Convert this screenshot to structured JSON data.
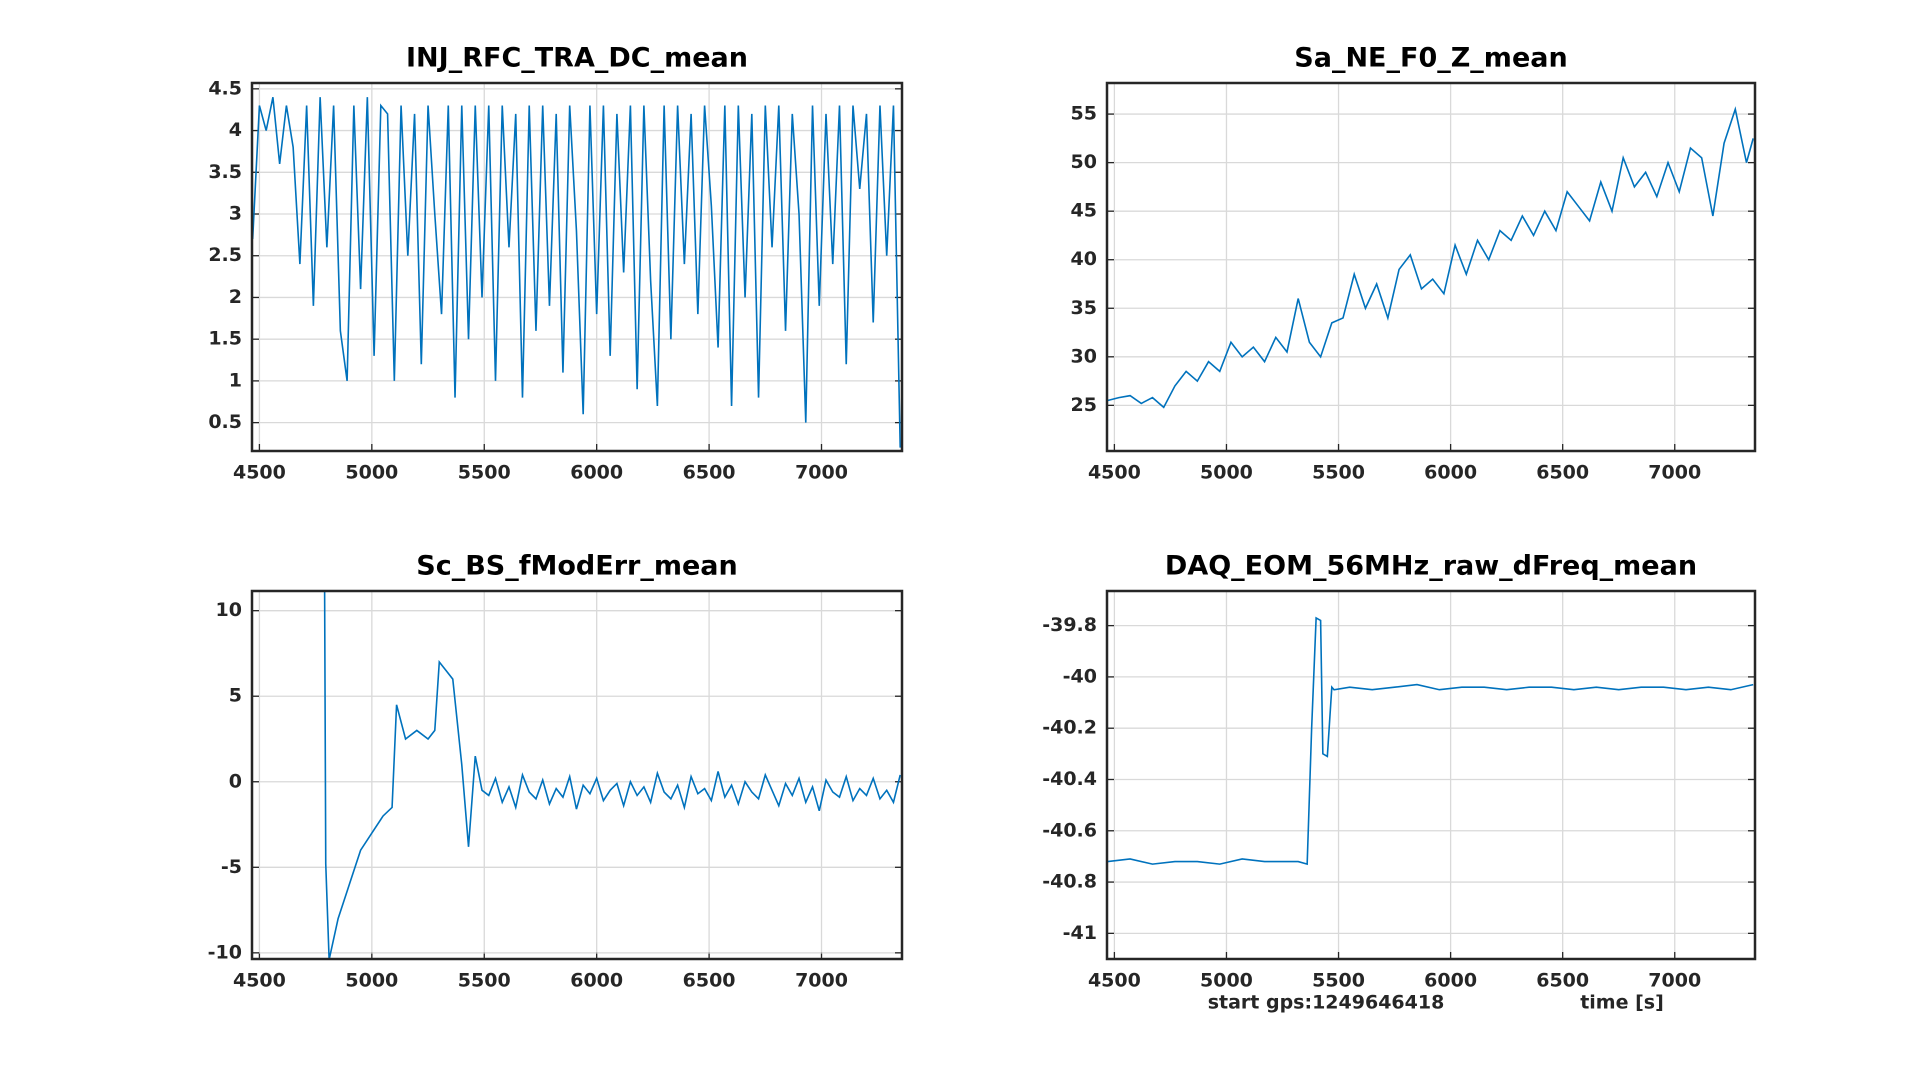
{
  "chart_data": [
    {
      "type": "line",
      "title": "INJ_RFC_TRA_DC_mean",
      "color": "#0072bd",
      "grid": true,
      "xlim": [
        4467,
        7358
      ],
      "xticks": [
        4500,
        5000,
        5500,
        6000,
        6500,
        7000
      ],
      "ylim": [
        0.16,
        4.57
      ],
      "yticks": [
        0.5,
        1,
        1.5,
        2,
        2.5,
        3,
        3.5,
        4,
        4.5
      ],
      "x": [
        4470,
        4500,
        4530,
        4560,
        4590,
        4620,
        4650,
        4680,
        4710,
        4740,
        4770,
        4800,
        4830,
        4860,
        4890,
        4920,
        4950,
        4980,
        5010,
        5040,
        5070,
        5100,
        5130,
        5160,
        5190,
        5220,
        5250,
        5280,
        5310,
        5340,
        5370,
        5400,
        5430,
        5460,
        5490,
        5520,
        5550,
        5580,
        5610,
        5640,
        5670,
        5700,
        5730,
        5760,
        5790,
        5820,
        5850,
        5880,
        5910,
        5940,
        5970,
        6000,
        6030,
        6060,
        6090,
        6120,
        6150,
        6180,
        6210,
        6240,
        6270,
        6300,
        6330,
        6360,
        6390,
        6420,
        6450,
        6480,
        6510,
        6540,
        6570,
        6600,
        6630,
        6660,
        6690,
        6720,
        6750,
        6780,
        6810,
        6840,
        6870,
        6900,
        6930,
        6960,
        6990,
        7020,
        7050,
        7080,
        7110,
        7140,
        7170,
        7200,
        7230,
        7260,
        7290,
        7320,
        7350
      ],
      "values": [
        2.7,
        4.3,
        4.0,
        4.4,
        3.6,
        4.3,
        3.8,
        2.4,
        4.3,
        1.9,
        4.4,
        2.6,
        4.3,
        1.6,
        1.0,
        4.3,
        2.1,
        4.4,
        1.3,
        4.3,
        4.2,
        1.0,
        4.3,
        2.5,
        4.2,
        1.2,
        4.3,
        3.0,
        1.8,
        4.3,
        0.8,
        4.3,
        1.5,
        4.3,
        2.0,
        4.3,
        1.0,
        4.3,
        2.6,
        4.2,
        0.8,
        4.3,
        1.6,
        4.3,
        1.9,
        4.2,
        1.1,
        4.3,
        2.8,
        0.6,
        4.3,
        1.8,
        4.3,
        1.3,
        4.2,
        2.3,
        4.3,
        0.9,
        4.3,
        2.2,
        0.7,
        4.3,
        1.5,
        4.3,
        2.4,
        4.2,
        1.8,
        4.3,
        3.1,
        1.4,
        4.3,
        0.7,
        4.3,
        2.0,
        4.2,
        0.8,
        4.3,
        2.6,
        4.3,
        1.6,
        4.2,
        3.0,
        0.5,
        4.3,
        1.9,
        4.2,
        2.4,
        4.3,
        1.2,
        4.3,
        3.3,
        4.2,
        1.7,
        4.3,
        2.5,
        4.3,
        0.2
      ]
    },
    {
      "type": "line",
      "title": "Sa_NE_F0_Z_mean",
      "color": "#0072bd",
      "grid": true,
      "xlim": [
        4467,
        7358
      ],
      "xticks": [
        4500,
        5000,
        5500,
        6000,
        6500,
        7000
      ],
      "ylim": [
        20.3,
        58.2
      ],
      "yticks": [
        25,
        30,
        35,
        40,
        45,
        50,
        55
      ],
      "x": [
        4470,
        4520,
        4570,
        4620,
        4670,
        4720,
        4770,
        4820,
        4870,
        4920,
        4970,
        5020,
        5070,
        5120,
        5170,
        5220,
        5270,
        5320,
        5370,
        5420,
        5470,
        5520,
        5570,
        5620,
        5670,
        5720,
        5770,
        5820,
        5870,
        5920,
        5970,
        6020,
        6070,
        6120,
        6170,
        6220,
        6270,
        6320,
        6370,
        6420,
        6470,
        6520,
        6570,
        6620,
        6670,
        6720,
        6770,
        6820,
        6870,
        6920,
        6970,
        7020,
        7070,
        7120,
        7170,
        7220,
        7270,
        7320,
        7350
      ],
      "values": [
        25.5,
        25.8,
        26.0,
        25.2,
        25.8,
        24.8,
        27.0,
        28.5,
        27.5,
        29.5,
        28.5,
        31.5,
        30.0,
        31.0,
        29.5,
        32.0,
        30.5,
        36.0,
        31.5,
        30.0,
        33.5,
        34.0,
        38.5,
        35.0,
        37.5,
        34.0,
        39.0,
        40.5,
        37.0,
        38.0,
        36.5,
        41.5,
        38.5,
        42.0,
        40.0,
        43.0,
        42.0,
        44.5,
        42.5,
        45.0,
        43.0,
        47.0,
        45.5,
        44.0,
        48.0,
        45.0,
        50.5,
        47.5,
        49.0,
        46.5,
        50.0,
        47.0,
        51.5,
        50.5,
        44.5,
        52.0,
        55.5,
        50.0,
        52.5
      ]
    },
    {
      "type": "line",
      "title": "Sc_BS_fModErr_mean",
      "color": "#0072bd",
      "grid": true,
      "xlim": [
        4467,
        7358
      ],
      "xticks": [
        4500,
        5000,
        5500,
        6000,
        6500,
        7000
      ],
      "ylim": [
        -10.36,
        11.15
      ],
      "yticks": [
        -10,
        -5,
        0,
        5,
        10
      ],
      "x": [
        4790,
        4795,
        4810,
        4850,
        4900,
        4950,
        5000,
        5050,
        5090,
        5110,
        5150,
        5200,
        5250,
        5280,
        5300,
        5330,
        5360,
        5400,
        5430,
        5460,
        5490,
        5520,
        5550,
        5580,
        5610,
        5640,
        5670,
        5700,
        5730,
        5760,
        5790,
        5820,
        5850,
        5880,
        5910,
        5940,
        5970,
        6000,
        6030,
        6060,
        6090,
        6120,
        6150,
        6180,
        6210,
        6240,
        6270,
        6300,
        6330,
        6360,
        6390,
        6420,
        6450,
        6480,
        6510,
        6540,
        6570,
        6600,
        6630,
        6660,
        6690,
        6720,
        6750,
        6780,
        6810,
        6840,
        6870,
        6900,
        6930,
        6960,
        6990,
        7020,
        7050,
        7080,
        7110,
        7140,
        7170,
        7200,
        7230,
        7260,
        7290,
        7320,
        7350
      ],
      "values": [
        11.2,
        -4.8,
        -10.4,
        -8,
        -6,
        -4,
        -3,
        -2,
        -1.5,
        4.5,
        2.5,
        3,
        2.5,
        3,
        7,
        6.5,
        6,
        1,
        -3.8,
        1.5,
        -0.5,
        -0.8,
        0.2,
        -1.2,
        -0.3,
        -1.5,
        0.4,
        -0.6,
        -1.0,
        0.1,
        -1.3,
        -0.4,
        -0.9,
        0.3,
        -1.6,
        -0.2,
        -0.7,
        0.2,
        -1.1,
        -0.5,
        -0.1,
        -1.4,
        0.0,
        -0.8,
        -0.3,
        -1.2,
        0.5,
        -0.6,
        -1.0,
        -0.2,
        -1.5,
        0.3,
        -0.7,
        -0.4,
        -1.1,
        0.6,
        -0.9,
        -0.2,
        -1.3,
        0.0,
        -0.6,
        -1.0,
        0.4,
        -0.5,
        -1.4,
        -0.1,
        -0.8,
        0.2,
        -1.2,
        -0.3,
        -1.7,
        0.1,
        -0.6,
        -0.9,
        0.3,
        -1.1,
        -0.4,
        -0.8,
        0.2,
        -1.0,
        -0.5,
        -1.2,
        0.4
      ]
    },
    {
      "type": "line",
      "title": "DAQ_EOM_56MHz_raw_dFreq_mean",
      "color": "#0072bd",
      "grid": true,
      "xlabel": "time [s]",
      "note": "start gps:1249646418",
      "xlim": [
        4467,
        7358
      ],
      "xticks": [
        4500,
        5000,
        5500,
        6000,
        6500,
        7000
      ],
      "ylim": [
        -41.1,
        -39.665
      ],
      "yticks": [
        -41,
        -40.8,
        -40.6,
        -40.4,
        -40.2,
        -40,
        -39.8
      ],
      "x": [
        4470,
        4570,
        4670,
        4770,
        4870,
        4970,
        5070,
        5170,
        5270,
        5320,
        5360,
        5380,
        5400,
        5420,
        5430,
        5450,
        5470,
        5480,
        5550,
        5650,
        5750,
        5850,
        5950,
        6050,
        6150,
        6250,
        6350,
        6450,
        6550,
        6650,
        6750,
        6850,
        6950,
        7050,
        7150,
        7250,
        7350
      ],
      "values": [
        -40.72,
        -40.71,
        -40.73,
        -40.72,
        -40.72,
        -40.73,
        -40.71,
        -40.72,
        -40.72,
        -40.72,
        -40.73,
        -40.2,
        -39.77,
        -39.78,
        -40.3,
        -40.31,
        -40.04,
        -40.05,
        -40.04,
        -40.05,
        -40.04,
        -40.03,
        -40.05,
        -40.04,
        -40.04,
        -40.05,
        -40.04,
        -40.04,
        -40.05,
        -40.04,
        -40.05,
        -40.04,
        -40.04,
        -40.05,
        -40.04,
        -40.05,
        -40.03
      ]
    }
  ]
}
